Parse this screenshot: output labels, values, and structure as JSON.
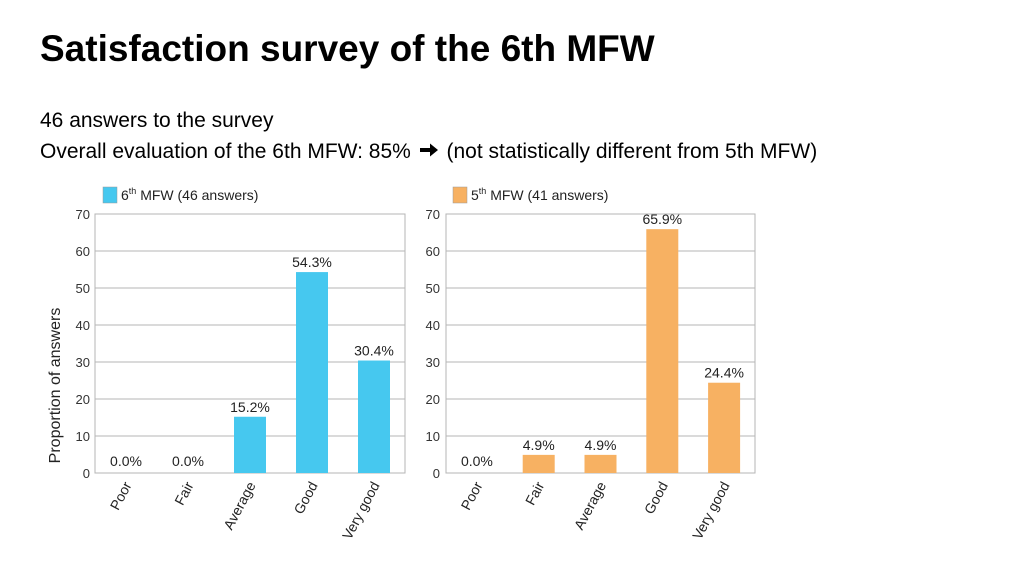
{
  "slide": {
    "title": "Satisfaction survey of the 6th MFW",
    "line1": "46 answers to the survey",
    "line2_text": "Overall evaluation of the 6th MFW: 85%",
    "line2_arrow_icon": "arrow-right-icon",
    "line2_note": "(not statistically different from 5th MFW)"
  },
  "chart_data": [
    {
      "type": "bar",
      "legend": {
        "base": "6",
        "sup": "th",
        "rest": " MFW (46 answers)"
      },
      "color": "#46c8ef",
      "categories": [
        "Poor",
        "Fair",
        "Average",
        "Good",
        "Very good"
      ],
      "values": [
        0.0,
        0.0,
        15.2,
        54.3,
        30.4
      ],
      "labels": [
        "0.0%",
        "0.0%",
        "15.2%",
        "54.3%",
        "30.4%"
      ],
      "ylabel": "Proportion of answers",
      "ylim": [
        0,
        70
      ],
      "yticks": [
        0,
        10,
        20,
        30,
        40,
        50,
        60,
        70
      ],
      "grid": true,
      "legend_position": "top-left"
    },
    {
      "type": "bar",
      "legend": {
        "base": "5",
        "sup": "th",
        "rest": " MFW (41 answers)"
      },
      "color": "#f7b162",
      "categories": [
        "Poor",
        "Fair",
        "Average",
        "Good",
        "Very good"
      ],
      "values": [
        0.0,
        4.9,
        4.9,
        65.9,
        24.4
      ],
      "labels": [
        "0.0%",
        "4.9%",
        "4.9%",
        "65.9%",
        "24.4%"
      ],
      "ylabel": "",
      "ylim": [
        0,
        70
      ],
      "yticks": [
        0,
        10,
        20,
        30,
        40,
        50,
        60,
        70
      ],
      "grid": true,
      "legend_position": "top-left"
    }
  ]
}
